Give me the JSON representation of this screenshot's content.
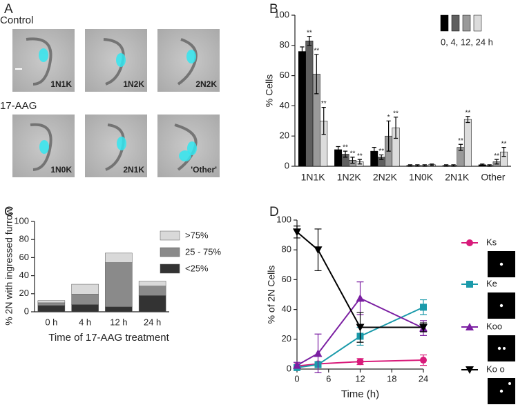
{
  "panel_a": {
    "label": "A",
    "rows": [
      {
        "title": "Control",
        "images": [
          "1N1K",
          "1N2K",
          "2N2K"
        ]
      },
      {
        "title": "17-AAG",
        "images": [
          "1N0K",
          "2N1K",
          "'Other'"
        ]
      }
    ]
  },
  "chart_data": [
    {
      "type": "bar",
      "panel_label": "B",
      "ylabel": "% Cells",
      "categories": [
        "1N1K",
        "1N2K",
        "2N2K",
        "1N0K",
        "2N1K",
        "Other"
      ],
      "legend_label": "0, 4, 12, 24 h",
      "ylim": [
        0,
        100
      ],
      "yticks": [
        0,
        20,
        40,
        60,
        80,
        100
      ],
      "series": [
        {
          "color": "#000000",
          "values": [
            76,
            11,
            10,
            0.5,
            0.5,
            1
          ],
          "errors": [
            3,
            2,
            2.5,
            0.5,
            0.5,
            0.5
          ],
          "annotations": [
            null,
            null,
            null,
            null,
            null,
            null
          ]
        },
        {
          "color": "#5f5f5f",
          "values": [
            83,
            8,
            6,
            0.5,
            0.5,
            0.5
          ],
          "errors": [
            3,
            2,
            1.5,
            0.5,
            0.5,
            0.5
          ],
          "annotations": [
            "**",
            "**",
            "**",
            null,
            null,
            null
          ]
        },
        {
          "color": "#9a9a9a",
          "values": [
            61,
            4,
            20,
            0.5,
            12.5,
            3
          ],
          "errors": [
            13,
            2,
            10,
            0.5,
            2,
            1.5
          ],
          "annotations": [
            "**",
            "**",
            "*",
            null,
            "**",
            "**"
          ]
        },
        {
          "color": "#dcdcdc",
          "values": [
            30,
            3,
            25.5,
            1,
            31,
            9.5
          ],
          "errors": [
            9,
            1.5,
            7,
            0.5,
            2,
            3
          ],
          "annotations": [
            "**",
            "**",
            "**",
            null,
            "**",
            "**"
          ]
        }
      ]
    },
    {
      "type": "stacked_bar",
      "panel_label": "C",
      "ylabel": "% 2N with ingressed furrow",
      "xlabel": "Time of 17-AAG treatment",
      "categories": [
        "0 h",
        "4 h",
        "12 h",
        "24 h"
      ],
      "ylim": [
        0,
        100
      ],
      "yticks": [
        0,
        20,
        40,
        60,
        80,
        100
      ],
      "series": [
        {
          "name": "<25%",
          "color": "#333333",
          "values": [
            7,
            8,
            5.5,
            18
          ]
        },
        {
          "name": "25 - 75%",
          "color": "#8a8a8a",
          "values": [
            3,
            11.5,
            49,
            10.5
          ]
        },
        {
          "name": ">75%",
          "color": "#d9d9d9",
          "values": [
            2.5,
            11,
            10.5,
            5.5
          ]
        }
      ]
    },
    {
      "type": "line",
      "panel_label": "D",
      "ylabel": "% of 2N Cells",
      "xlabel": "Time (h)",
      "x": [
        0,
        4,
        12,
        24
      ],
      "xlim": [
        0,
        24
      ],
      "xticks": [
        0,
        6,
        12,
        18,
        24
      ],
      "ylim": [
        0,
        100
      ],
      "yticks": [
        0,
        20,
        40,
        60,
        80,
        100
      ],
      "series": [
        {
          "name": "Ks",
          "color": "#d81b7a",
          "marker": "circle",
          "values": [
            2,
            3.5,
            5,
            6
          ],
          "errors": [
            1,
            1.5,
            2,
            3.5
          ]
        },
        {
          "name": "Ke",
          "color": "#1a9aaa",
          "marker": "square",
          "values": [
            1,
            3,
            22,
            41.5
          ],
          "errors": [
            1,
            2,
            6,
            5
          ]
        },
        {
          "name": "Koo",
          "color": "#7b1fa2",
          "marker": "triangle-up",
          "values": [
            2.5,
            10.5,
            47.5,
            27.5
          ],
          "errors": [
            2,
            13,
            11,
            5
          ]
        },
        {
          "name": "Ko o",
          "color": "#000000",
          "marker": "triangle-down",
          "values": [
            92,
            80,
            28,
            28
          ],
          "errors": [
            4,
            14,
            10,
            3
          ]
        }
      ]
    }
  ]
}
